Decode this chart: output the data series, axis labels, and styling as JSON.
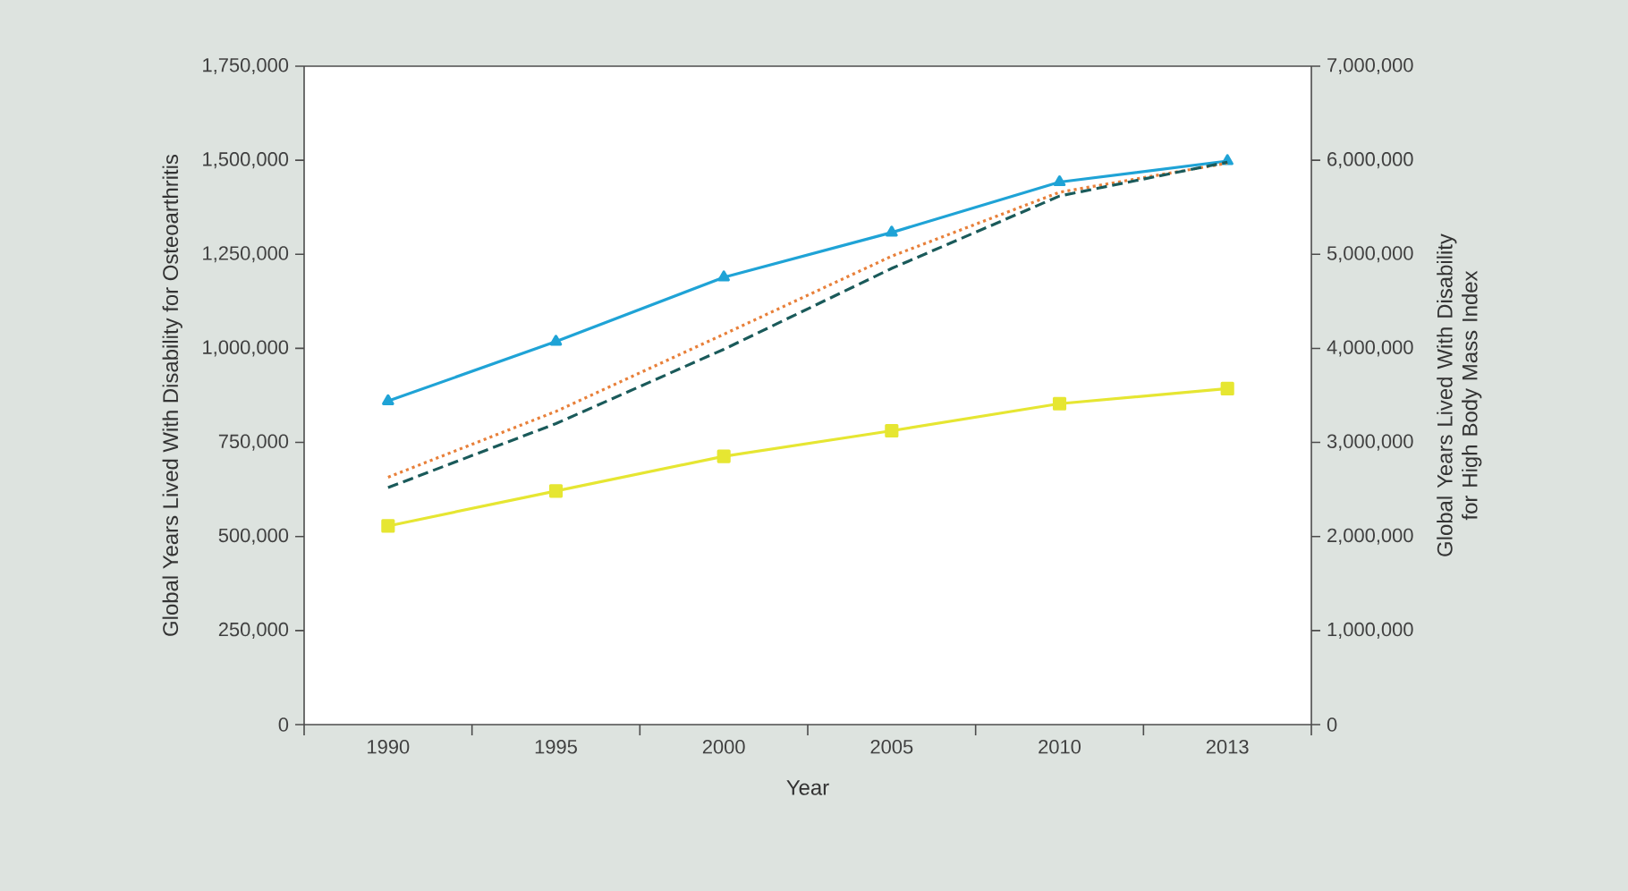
{
  "chart_data": {
    "type": "line",
    "xlabel": "Year",
    "ylabel": "Global Years Lived With Disability for Osteoarthritis",
    "y2label": "Global Years Lived With Disability for High Body Mass Index",
    "categories": [
      "1990",
      "1995",
      "2000",
      "2005",
      "2010",
      "2013"
    ],
    "series": [
      {
        "color": "#1fa3d6",
        "marker": "triangle",
        "line_style": "solid",
        "values": [
          860000,
          1018000,
          1189000,
          1308000,
          1442000,
          1498000
        ]
      },
      {
        "color": "#e6e632",
        "marker": "square",
        "line_style": "solid",
        "values": [
          528000,
          621000,
          713000,
          781000,
          853000,
          893000
        ]
      },
      {
        "color": "#e8803a",
        "marker": "none",
        "line_style": "dotted",
        "axis": "y2",
        "values": [
          2630000,
          3330000,
          4150000,
          4980000,
          5660000,
          5970000
        ]
      },
      {
        "color": "#1a5a5a",
        "marker": "none",
        "line_style": "dashed",
        "axis": "y2",
        "values": [
          2520000,
          3200000,
          3990000,
          4850000,
          5620000,
          5980000
        ]
      }
    ],
    "ylim": [
      0,
      1750000
    ],
    "yticks": [
      0,
      {
        "value": 250000,
        "label": "250,000"
      },
      {
        "value": 500000,
        "label": "500,000"
      },
      {
        "value": 750000,
        "label": "750,000"
      },
      {
        "value": 1000000,
        "label": "1,000,000"
      },
      {
        "value": 1250000,
        "label": "1,250,000"
      },
      {
        "value": 1500000,
        "label": "1,500,000"
      },
      {
        "value": 1750000,
        "label": "1,750,000"
      }
    ],
    "y2lim": [
      0,
      7000000
    ],
    "y2ticks": [
      0,
      {
        "value": 1000000,
        "label": "1,000,000"
      },
      {
        "value": 2000000,
        "label": "2,000,000"
      },
      {
        "value": 3000000,
        "label": "3,000,000"
      },
      {
        "value": 4000000,
        "label": "4,000,000"
      },
      {
        "value": 5000000,
        "label": "5,000,000"
      },
      {
        "value": 6000000,
        "label": "6,000,000"
      },
      {
        "value": 7000000,
        "label": "7,000,000"
      }
    ],
    "grid": false
  }
}
